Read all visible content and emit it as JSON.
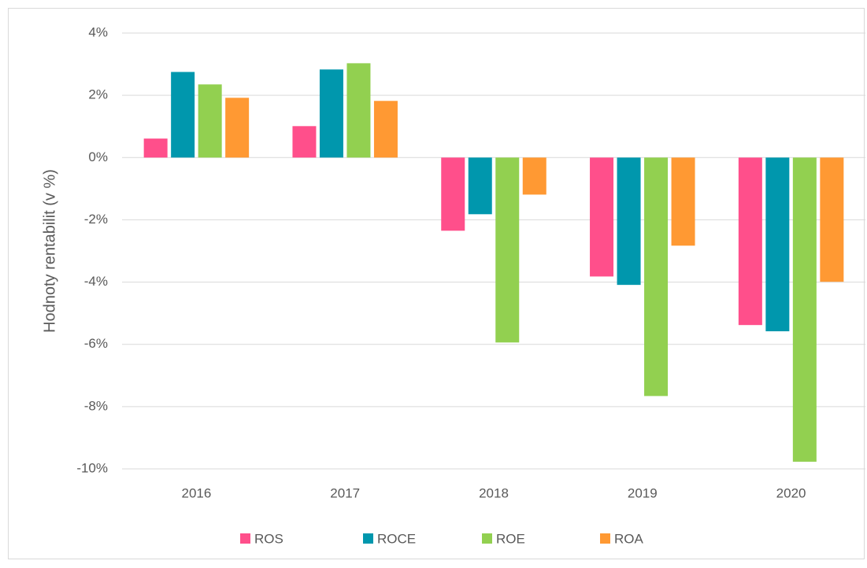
{
  "chart_data": {
    "type": "bar",
    "y_label": "Hodnoty rentabilit (v %)",
    "categories": [
      "2016",
      "2017",
      "2018",
      "2019",
      "2020"
    ],
    "series": [
      {
        "name": "ROS",
        "color": "#ff4f8b",
        "values": [
          0.61,
          1.01,
          -2.35,
          -3.82,
          -5.38
        ]
      },
      {
        "name": "ROCE",
        "color": "#0097ad",
        "values": [
          2.75,
          2.83,
          -1.82,
          -4.09,
          -5.58
        ]
      },
      {
        "name": "ROE",
        "color": "#92d050",
        "values": [
          2.35,
          3.03,
          -5.94,
          -7.66,
          -9.77
        ]
      },
      {
        "name": "ROA",
        "color": "#ff9933",
        "values": [
          1.92,
          1.82,
          -1.19,
          -2.83,
          -3.99
        ]
      }
    ],
    "ylim": [
      -10,
      4
    ],
    "yticks": [
      {
        "value": -10,
        "label": "-10%"
      },
      {
        "value": -8,
        "label": "-8%"
      },
      {
        "value": -6,
        "label": "-6%"
      },
      {
        "value": -4,
        "label": "-4%"
      },
      {
        "value": -2,
        "label": "-2%"
      },
      {
        "value": 0,
        "label": "0%"
      },
      {
        "value": 2,
        "label": "2%"
      },
      {
        "value": 4,
        "label": "4%"
      }
    ],
    "grid": true,
    "legend": "bottom"
  }
}
